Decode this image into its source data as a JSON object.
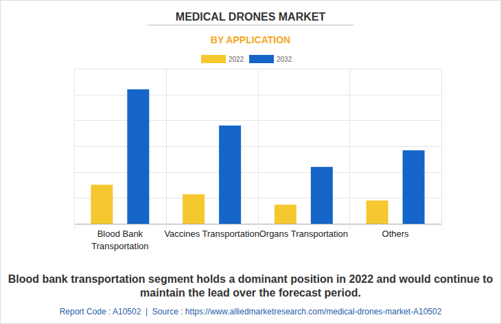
{
  "chart_data": {
    "type": "bar",
    "title": "MEDICAL DRONES MARKET",
    "subtitle": "BY APPLICATION",
    "categories": [
      "Blood Bank Transportation",
      "Vaccines Transportation",
      "Organs Transportation",
      "Others"
    ],
    "series": [
      {
        "name": "2022",
        "color": "#f5c830",
        "values": [
          1.51,
          1.14,
          0.74,
          0.9
        ]
      },
      {
        "name": "2032",
        "color": "#1565c8",
        "values": [
          5.2,
          3.8,
          2.2,
          2.84
        ]
      }
    ],
    "ylim": [
      0,
      6
    ],
    "yticks": [
      0,
      1,
      2,
      3,
      4,
      5,
      6
    ],
    "grid": true,
    "legend": "top",
    "tick_labels": false,
    "caption": "Blood bank transportation segment holds a dominant position in 2022 and would continue to maintain the lead over the forecast period.",
    "footer": "Report Code : A10502  |  Source : https://www.alliedmarketresearch.com/medical-drones-market-A10502"
  }
}
